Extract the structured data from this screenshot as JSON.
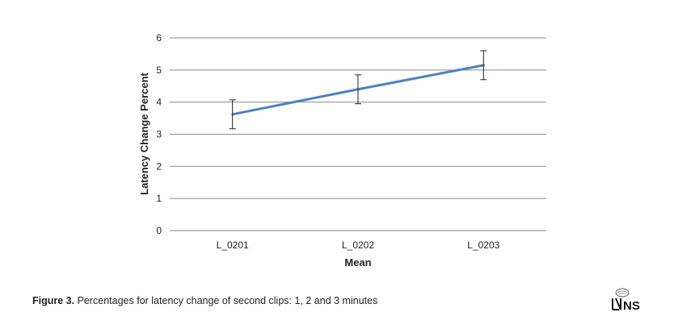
{
  "chart_data": {
    "type": "line",
    "categories": [
      "L_0201",
      "L_0202",
      "L_0203"
    ],
    "series": [
      {
        "values": [
          3.62,
          4.4,
          5.15
        ],
        "error": [
          0.45,
          0.45,
          0.45
        ],
        "color": "#4f81bd"
      }
    ],
    "xlabel": "Mean",
    "ylabel": "Latency Change Percent",
    "ylim": [
      0,
      6
    ],
    "yticks": [
      "0",
      "1",
      "2",
      "3",
      "4",
      "5",
      "6"
    ],
    "grid": true,
    "legend": "none"
  },
  "caption": {
    "label": "Figure 3.",
    "text": " Percentages for latency change of second clips: 1, 2 and 3 minutes"
  },
  "logo": {
    "text": "NS"
  }
}
